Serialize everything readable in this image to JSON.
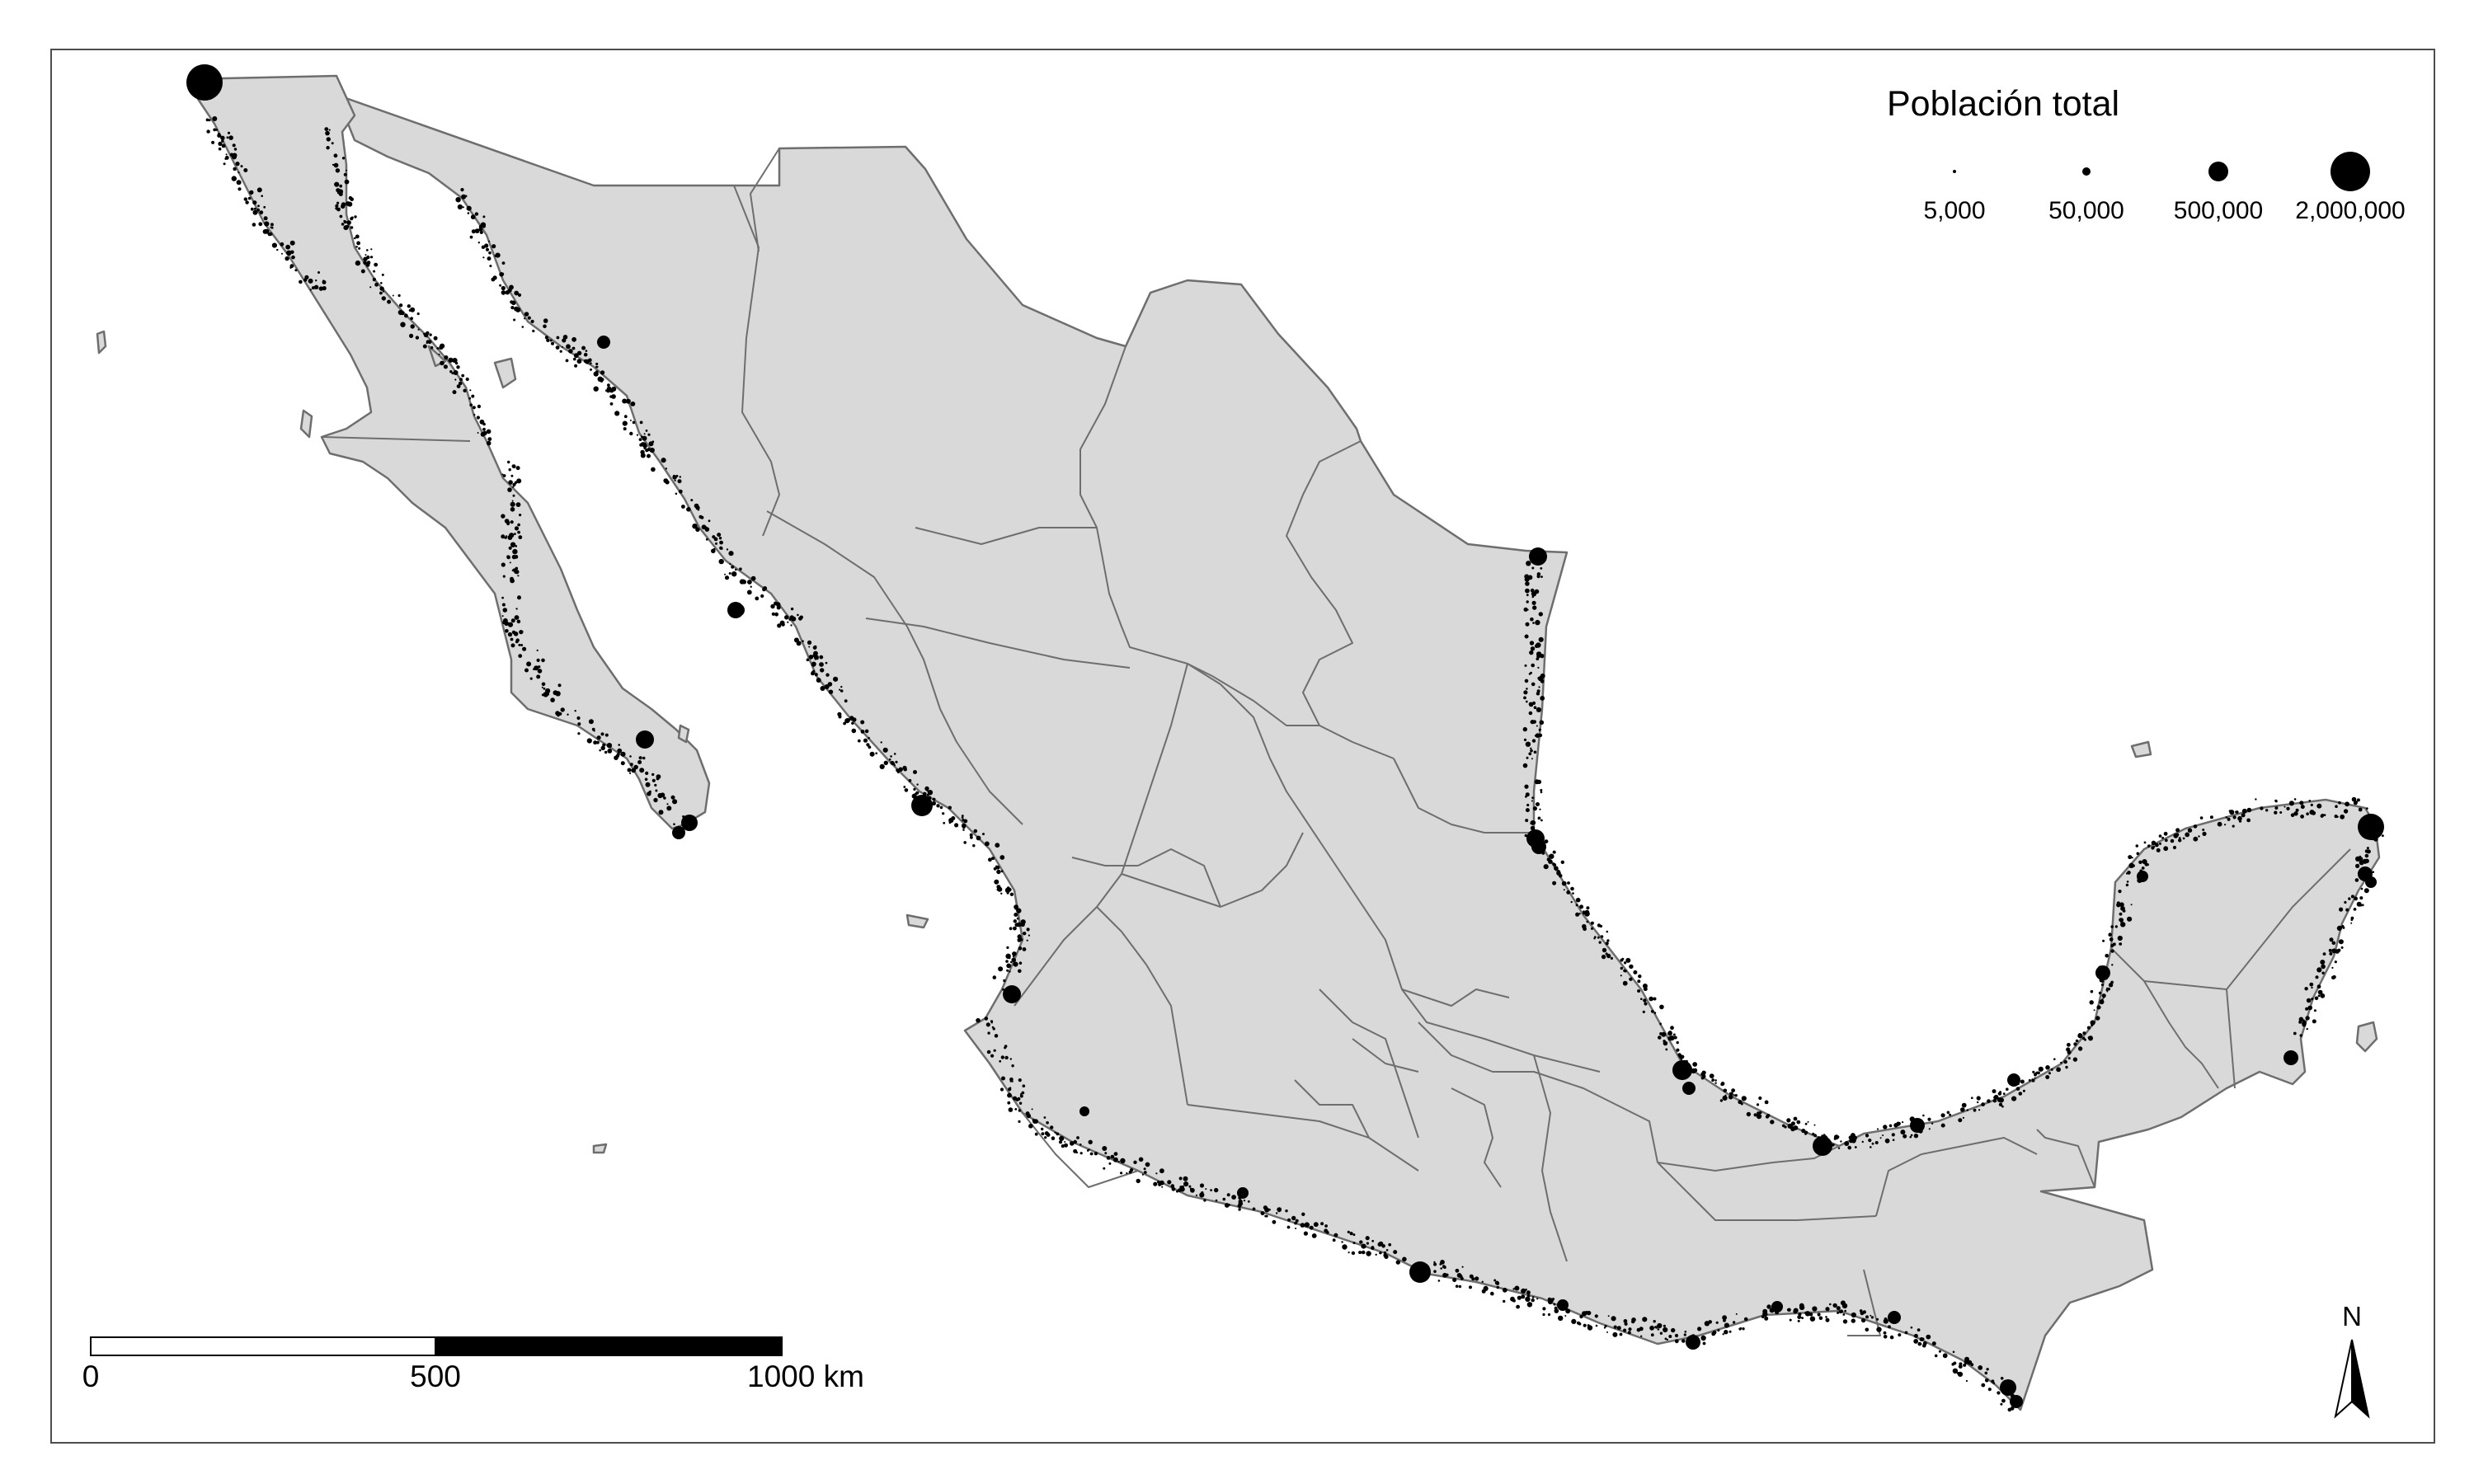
{
  "legend": {
    "title": "Población total",
    "items": [
      {
        "label": "5,000",
        "value": 5000
      },
      {
        "label": "50,000",
        "value": 50000
      },
      {
        "label": "500,000",
        "value": 500000
      },
      {
        "label": "2,000,000",
        "value": 2000000
      }
    ]
  },
  "scale_bar": {
    "labels": [
      "0",
      "500",
      "1000 km"
    ]
  },
  "north_arrow": {
    "label": "N"
  },
  "colors": {
    "land": "#d9d9d9",
    "border": "#6e6e6e",
    "points": "#000000",
    "frame": "#4d4d4d"
  }
}
